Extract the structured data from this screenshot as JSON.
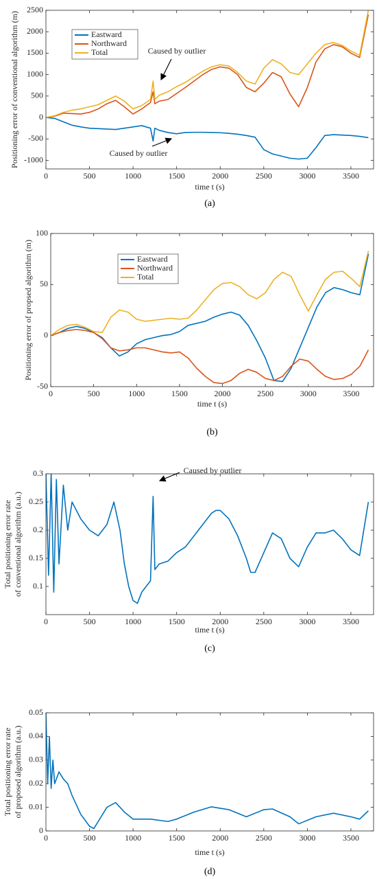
{
  "chart_data": [
    {
      "type": "line",
      "label": "(a)",
      "xlabel": "time t (s)",
      "ylabel": [
        "Positioning error of conventional algorithm (m)"
      ],
      "xlim": [
        0,
        3760
      ],
      "xticks": [
        0,
        500,
        1000,
        1500,
        2000,
        2500,
        3000,
        3500
      ],
      "ylim": [
        -1200,
        2500
      ],
      "yticks": [
        -1000,
        -500,
        0,
        500,
        1000,
        1500,
        2000,
        2500
      ],
      "annotations": [
        "Caused by outlier",
        "Caused by outlier"
      ],
      "x": [
        0,
        100,
        200,
        300,
        400,
        500,
        600,
        700,
        800,
        900,
        1000,
        1100,
        1200,
        1230,
        1250,
        1300,
        1400,
        1500,
        1600,
        1700,
        1800,
        1900,
        2000,
        2100,
        2200,
        2300,
        2400,
        2500,
        2600,
        2700,
        2800,
        2900,
        3000,
        3100,
        3200,
        3300,
        3400,
        3500,
        3600,
        3700
      ],
      "series": [
        {
          "name": "Eastward",
          "color": "#0072bd",
          "values": [
            0,
            -20,
            -100,
            -180,
            -220,
            -250,
            -260,
            -270,
            -280,
            -250,
            -220,
            -190,
            -250,
            -550,
            -250,
            -300,
            -350,
            -380,
            -350,
            -345,
            -345,
            -350,
            -355,
            -370,
            -390,
            -420,
            -460,
            -750,
            -850,
            -900,
            -950,
            -970,
            -950,
            -700,
            -420,
            -400,
            -410,
            -420,
            -440,
            -470
          ]
        },
        {
          "name": "Northward",
          "color": "#d95319",
          "values": [
            0,
            30,
            100,
            90,
            80,
            120,
            200,
            320,
            400,
            250,
            80,
            200,
            350,
            600,
            320,
            380,
            420,
            560,
            700,
            850,
            1000,
            1120,
            1180,
            1150,
            1000,
            700,
            600,
            800,
            1050,
            950,
            550,
            250,
            700,
            1300,
            1600,
            1700,
            1650,
            1500,
            1400,
            2400
          ]
        },
        {
          "name": "Total",
          "color": "#edb120",
          "values": [
            0,
            40,
            120,
            170,
            200,
            250,
            300,
            400,
            500,
            380,
            200,
            280,
            420,
            850,
            420,
            520,
            600,
            720,
            820,
            950,
            1080,
            1180,
            1230,
            1200,
            1050,
            850,
            780,
            1150,
            1350,
            1250,
            1050,
            1000,
            1250,
            1500,
            1700,
            1750,
            1680,
            1550,
            1450,
            2500
          ]
        }
      ]
    },
    {
      "type": "line",
      "label": "(b)",
      "xlabel": "time t (s)",
      "ylabel": [
        "Positioning error of propsed algorithm (m)"
      ],
      "xlim": [
        0,
        3760
      ],
      "xticks": [
        0,
        500,
        1000,
        1500,
        2000,
        2500,
        3000,
        3500
      ],
      "ylim": [
        -50,
        100
      ],
      "yticks": [
        -50,
        0,
        50,
        100
      ],
      "x": [
        0,
        100,
        200,
        300,
        400,
        500,
        600,
        700,
        800,
        900,
        1000,
        1100,
        1200,
        1300,
        1400,
        1500,
        1600,
        1700,
        1800,
        1900,
        2000,
        2100,
        2200,
        2300,
        2400,
        2500,
        2600,
        2700,
        2800,
        2900,
        3000,
        3100,
        3200,
        3300,
        3400,
        3500,
        3600,
        3700
      ],
      "series": [
        {
          "name": "Eastward",
          "color": "#0072bd",
          "values": [
            0,
            3,
            7,
            9,
            7,
            3,
            -2,
            -12,
            -20,
            -16,
            -8,
            -4,
            -2,
            0,
            1,
            4,
            10,
            12,
            14,
            18,
            21,
            23,
            20,
            10,
            -5,
            -22,
            -44,
            -45,
            -32,
            -12,
            8,
            28,
            42,
            47,
            45,
            42,
            40,
            80
          ]
        },
        {
          "name": "Northward",
          "color": "#d95319",
          "values": [
            0,
            3,
            5,
            6,
            5,
            3,
            -3,
            -12,
            -15,
            -14,
            -12,
            -12,
            -14,
            -16,
            -17,
            -16,
            -22,
            -32,
            -40,
            -46,
            -47,
            -44,
            -37,
            -33,
            -36,
            -42,
            -44,
            -40,
            -30,
            -23,
            -25,
            -33,
            -40,
            -43,
            -42,
            -38,
            -30,
            -14
          ]
        },
        {
          "name": "Total",
          "color": "#edb120",
          "values": [
            0,
            6,
            10,
            11,
            8,
            4,
            3,
            18,
            25,
            23,
            16,
            14,
            15,
            16,
            17,
            16,
            17,
            25,
            35,
            45,
            51,
            52,
            48,
            40,
            36,
            42,
            55,
            62,
            58,
            40,
            24,
            40,
            55,
            62,
            63,
            56,
            48,
            83
          ]
        }
      ]
    },
    {
      "type": "line",
      "label": "(c)",
      "xlabel": "time t (s)",
      "ylabel": [
        "Total positioning error rate",
        "of conventional algorithm (a.u.)"
      ],
      "xlim": [
        0,
        3760
      ],
      "xticks": [
        0,
        500,
        1000,
        1500,
        2000,
        2500,
        3000,
        3500
      ],
      "ylim": [
        0.05,
        0.3
      ],
      "yticks": [
        0.1,
        0.15,
        0.2,
        0.25,
        0.3
      ],
      "annotations": [
        "Caused by outlier"
      ],
      "x": [
        0,
        30,
        60,
        90,
        120,
        150,
        200,
        250,
        300,
        400,
        500,
        600,
        700,
        780,
        850,
        900,
        950,
        1000,
        1050,
        1100,
        1150,
        1200,
        1230,
        1250,
        1300,
        1400,
        1500,
        1600,
        1700,
        1800,
        1900,
        1950,
        2000,
        2100,
        2200,
        2300,
        2350,
        2400,
        2500,
        2600,
        2700,
        2800,
        2900,
        3000,
        3100,
        3200,
        3300,
        3400,
        3500,
        3600,
        3700
      ],
      "series": [
        {
          "color": "#0072bd",
          "values": [
            0.3,
            0.12,
            0.3,
            0.09,
            0.29,
            0.14,
            0.28,
            0.2,
            0.25,
            0.22,
            0.2,
            0.19,
            0.21,
            0.25,
            0.2,
            0.14,
            0.1,
            0.075,
            0.07,
            0.09,
            0.1,
            0.11,
            0.26,
            0.13,
            0.14,
            0.145,
            0.16,
            0.17,
            0.19,
            0.21,
            0.23,
            0.235,
            0.235,
            0.22,
            0.19,
            0.15,
            0.125,
            0.125,
            0.16,
            0.195,
            0.185,
            0.15,
            0.135,
            0.17,
            0.195,
            0.195,
            0.2,
            0.185,
            0.165,
            0.155,
            0.25
          ]
        }
      ]
    },
    {
      "type": "line",
      "label": "(d)",
      "xlabel": "time t (s)",
      "ylabel": [
        "Total positioning error rate",
        "of proposed algorithm (a.u.)"
      ],
      "xlim": [
        0,
        3760
      ],
      "xticks": [
        0,
        500,
        1000,
        1500,
        2000,
        2500,
        3000,
        3500
      ],
      "ylim": [
        0,
        0.05
      ],
      "yticks": [
        0,
        0.01,
        0.02,
        0.03,
        0.04,
        0.05
      ],
      "x": [
        0,
        20,
        40,
        60,
        80,
        100,
        150,
        200,
        250,
        300,
        400,
        500,
        550,
        600,
        700,
        800,
        900,
        1000,
        1200,
        1400,
        1500,
        1700,
        1900,
        2100,
        2300,
        2500,
        2600,
        2800,
        2900,
        3100,
        3300,
        3500,
        3600,
        3700
      ],
      "series": [
        {
          "color": "#0072bd",
          "values": [
            0.05,
            0.02,
            0.04,
            0.018,
            0.03,
            0.02,
            0.025,
            0.022,
            0.02,
            0.015,
            0.007,
            0.002,
            0.001,
            0.004,
            0.01,
            0.012,
            0.008,
            0.005,
            0.005,
            0.004,
            0.005,
            0.008,
            0.0102,
            0.009,
            0.006,
            0.009,
            0.0093,
            0.006,
            0.003,
            0.006,
            0.0075,
            0.006,
            0.005,
            0.0085
          ]
        }
      ]
    }
  ]
}
